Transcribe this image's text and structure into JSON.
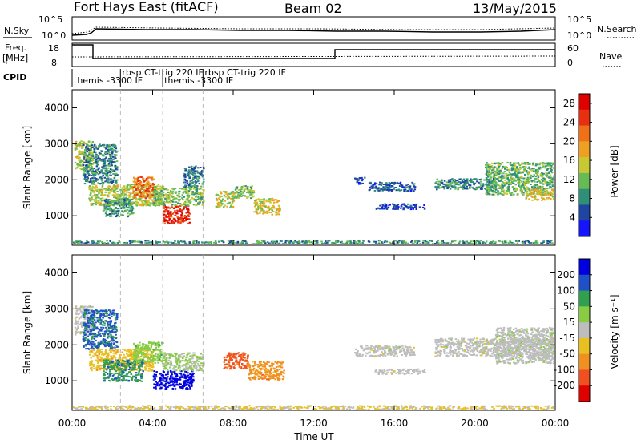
{
  "header": {
    "radar_title": "Fort Hays East (fitACF)",
    "beam": "Beam 02",
    "date": "13/May/2015"
  },
  "summary_panels": {
    "nsky_label": "N.Sky",
    "nsearch_label": "N.Search",
    "noise_ticks": [
      "10^5",
      "10^0"
    ],
    "freq_label_1": "Freq.",
    "freq_label_2": "[MHz]",
    "freq_ticks": [
      "18",
      "8"
    ],
    "nave_label": "Nave",
    "nave_ticks": [
      "60",
      "0"
    ],
    "cpid_label": "CPID",
    "cpid_entries": [
      {
        "text": "themis -3300 IF",
        "start_hour": 0.0,
        "row": 1
      },
      {
        "text": "rbsp CT-trig 220 IF",
        "start_hour": 2.4,
        "row": 0
      },
      {
        "text": "themis -3300 IF",
        "start_hour": 4.5,
        "row": 1
      },
      {
        "text": "rbsp CT-trig 220 IF",
        "start_hour": 6.5,
        "row": 0
      }
    ]
  },
  "colors": {
    "power_scale": [
      "#1414ff",
      "#1e46a0",
      "#2f8f78",
      "#66bb55",
      "#c8c832",
      "#f0a020",
      "#f07018",
      "#e83010",
      "#e00000"
    ],
    "velocity_scale": [
      "#0000e0",
      "#2050c8",
      "#30a050",
      "#88cc44",
      "#bdbdbd",
      "#e8c020",
      "#f09020",
      "#f05020",
      "#e00000"
    ]
  },
  "chart_data": [
    {
      "type": "heatmap",
      "panel": "power",
      "ylabel": "Slant Range [km]",
      "xlabel": "Time UT",
      "x_ticks": [
        "00:00",
        "04:00",
        "08:00",
        "12:00",
        "16:00",
        "20:00",
        "00:00"
      ],
      "y_ticks": [
        "1000",
        "2000",
        "3000",
        "4000"
      ],
      "ylim": [
        180,
        4500
      ],
      "xlim_hours": [
        0,
        24
      ],
      "colorbar_label": "Power [dB]",
      "colorbar_ticks": [
        "4",
        "8",
        "12",
        "16",
        "20",
        "24",
        "28"
      ],
      "colorbar_range": [
        0,
        30
      ],
      "echo_regions": [
        {
          "t0": 0.1,
          "t1": 1.0,
          "r0": 2300,
          "r1": 3100,
          "level": 14
        },
        {
          "t0": 0.5,
          "t1": 2.2,
          "r0": 1900,
          "r1": 3000,
          "level": 8
        },
        {
          "t0": 0.8,
          "t1": 4.5,
          "r0": 1300,
          "r1": 1900,
          "level": 14
        },
        {
          "t0": 1.5,
          "t1": 3.0,
          "r0": 1000,
          "r1": 1500,
          "level": 9
        },
        {
          "t0": 3.0,
          "t1": 4.0,
          "r0": 1500,
          "r1": 2100,
          "level": 22
        },
        {
          "t0": 4.5,
          "t1": 5.8,
          "r0": 800,
          "r1": 1300,
          "level": 26
        },
        {
          "t0": 4.0,
          "t1": 6.5,
          "r0": 1300,
          "r1": 1800,
          "level": 12
        },
        {
          "t0": 5.5,
          "t1": 6.5,
          "r0": 1800,
          "r1": 2400,
          "level": 7
        },
        {
          "t0": 7.1,
          "t1": 8.0,
          "r0": 1250,
          "r1": 1700,
          "level": 15
        },
        {
          "t0": 8.0,
          "t1": 9.0,
          "r0": 1500,
          "r1": 1850,
          "level": 12
        },
        {
          "t0": 9.0,
          "t1": 10.3,
          "r0": 1050,
          "r1": 1500,
          "level": 16
        },
        {
          "t0": 14.0,
          "t1": 14.5,
          "r0": 1900,
          "r1": 2100,
          "level": 6
        },
        {
          "t0": 14.7,
          "t1": 17.0,
          "r0": 1700,
          "r1": 1950,
          "level": 6
        },
        {
          "t0": 15.0,
          "t1": 17.5,
          "r0": 1200,
          "r1": 1350,
          "level": 4
        },
        {
          "t0": 18.0,
          "t1": 21.0,
          "r0": 1750,
          "r1": 2050,
          "level": 8
        },
        {
          "t0": 20.5,
          "t1": 24.0,
          "r0": 1600,
          "r1": 2500,
          "level": 11
        },
        {
          "t0": 22.5,
          "t1": 24.0,
          "r0": 1450,
          "r1": 1750,
          "level": 16
        },
        {
          "t0": 0.0,
          "t1": 24.0,
          "r0": 180,
          "r1": 330,
          "level": 9
        }
      ]
    },
    {
      "type": "heatmap",
      "panel": "velocity",
      "ylabel": "Slant Range [km]",
      "xlabel": "Time UT",
      "x_ticks": [
        "00:00",
        "04:00",
        "08:00",
        "12:00",
        "16:00",
        "20:00",
        "00:00"
      ],
      "y_ticks": [
        "1000",
        "2000",
        "3000",
        "4000"
      ],
      "ylim": [
        180,
        4500
      ],
      "xlim_hours": [
        0,
        24
      ],
      "colorbar_label": "Velocity [m s⁻¹]",
      "colorbar_ticks": [
        "200",
        "100",
        "50",
        "15",
        "-15",
        "-50",
        "-100",
        "-200"
      ],
      "colorbar_range": [
        -250,
        250
      ],
      "echo_regions": [
        {
          "t0": 0.1,
          "t1": 1.0,
          "r0": 2300,
          "r1": 3100,
          "level": 0
        },
        {
          "t0": 0.5,
          "t1": 2.2,
          "r0": 1900,
          "r1": 3000,
          "level": 150
        },
        {
          "t0": 0.8,
          "t1": 4.0,
          "r0": 1300,
          "r1": 1900,
          "level": -60
        },
        {
          "t0": 1.5,
          "t1": 3.5,
          "r0": 1000,
          "r1": 1600,
          "level": 120
        },
        {
          "t0": 3.0,
          "t1": 4.5,
          "r0": 1500,
          "r1": 2100,
          "level": 60
        },
        {
          "t0": 4.0,
          "t1": 6.0,
          "r0": 800,
          "r1": 1300,
          "level": 220
        },
        {
          "t0": 4.5,
          "t1": 6.5,
          "r0": 1300,
          "r1": 1800,
          "level": 30
        },
        {
          "t0": 7.5,
          "t1": 8.7,
          "r0": 1350,
          "r1": 1800,
          "level": -160
        },
        {
          "t0": 8.7,
          "t1": 10.5,
          "r0": 1050,
          "r1": 1550,
          "level": -110
        },
        {
          "t0": 14.0,
          "t1": 17.0,
          "r0": 1700,
          "r1": 2000,
          "level": 0
        },
        {
          "t0": 15.0,
          "t1": 17.5,
          "r0": 1200,
          "r1": 1350,
          "level": 0
        },
        {
          "t0": 18.0,
          "t1": 24.0,
          "r0": 1700,
          "r1": 2200,
          "level": 0
        },
        {
          "t0": 21.0,
          "t1": 24.0,
          "r0": 1500,
          "r1": 2500,
          "level": 5
        },
        {
          "t0": 0.0,
          "t1": 24.0,
          "r0": 180,
          "r1": 330,
          "level": -30
        }
      ]
    }
  ]
}
